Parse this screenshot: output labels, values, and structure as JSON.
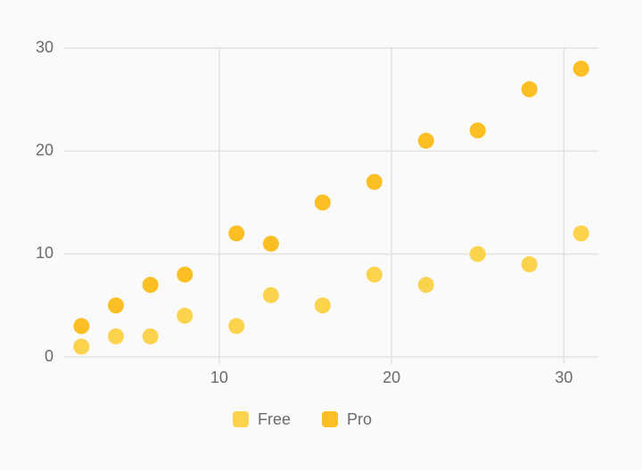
{
  "chart_data": {
    "type": "scatter",
    "x": [
      2,
      4,
      6,
      8,
      11,
      13,
      16,
      19,
      22,
      25,
      28,
      31
    ],
    "series": [
      {
        "name": "Free",
        "color": "#fcd34d",
        "values": [
          1,
          2,
          2,
          4,
          3,
          6,
          5,
          8,
          7,
          10,
          9,
          12
        ]
      },
      {
        "name": "Pro",
        "color": "#fbbf24",
        "values": [
          3,
          5,
          7,
          8,
          12,
          11,
          15,
          17,
          21,
          22,
          26,
          28
        ]
      }
    ],
    "xlim": [
      1,
      32
    ],
    "xticks": [
      10,
      20,
      30
    ],
    "ylim": [
      0,
      30
    ],
    "yticks": [
      0,
      10,
      20,
      30
    ],
    "grid": true,
    "legend": "bottom"
  }
}
